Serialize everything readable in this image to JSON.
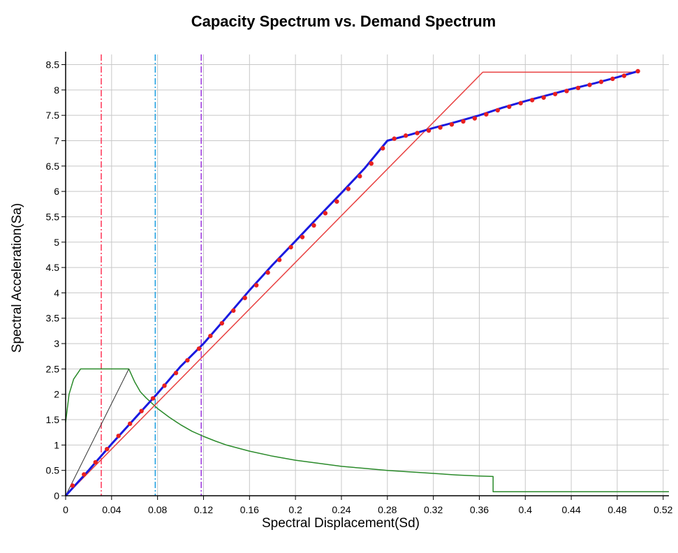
{
  "chart_data": {
    "type": "line",
    "title": "Capacity Spectrum vs. Demand Spectrum",
    "xlabel": "Spectral Displacement(Sd)",
    "ylabel": "Spectral Acceleration(Sa)",
    "xlim": [
      0,
      0.525
    ],
    "ylim": [
      0,
      8.7
    ],
    "grid": true,
    "x_ticks": [
      0,
      0.04,
      0.08,
      0.12,
      0.16,
      0.2,
      0.24,
      0.28,
      0.32,
      0.36,
      0.4,
      0.44,
      0.48,
      0.52
    ],
    "x_tick_labels": [
      "0",
      "0.04",
      "0.08",
      "0.12",
      "0.16",
      "0.2",
      "0.24",
      "0.28",
      "0.32",
      "0.36",
      "0.4",
      "0.44",
      "0.48",
      "0.52"
    ],
    "y_ticks": [
      0,
      0.5,
      1,
      1.5,
      2,
      2.5,
      3,
      3.5,
      4,
      4.5,
      5,
      5.5,
      6,
      6.5,
      7,
      7.5,
      8,
      8.5
    ],
    "y_tick_labels": [
      "0",
      "0.5",
      "1",
      "1.5",
      "2",
      "2.5",
      "3",
      "3.5",
      "4",
      "4.5",
      "5",
      "5.5",
      "6",
      "6.5",
      "7",
      "7.5",
      "8",
      "8.5"
    ],
    "series": [
      {
        "color": "#2a8a2a",
        "style": "solid",
        "points": [
          [
            0,
            1.45
          ],
          [
            0.003,
            2.0
          ],
          [
            0.007,
            2.3
          ],
          [
            0.013,
            2.5
          ],
          [
            0.055,
            2.5
          ],
          [
            0.06,
            2.25
          ],
          [
            0.065,
            2.05
          ],
          [
            0.07,
            1.93
          ],
          [
            0.08,
            1.72
          ],
          [
            0.09,
            1.55
          ],
          [
            0.1,
            1.4
          ],
          [
            0.11,
            1.27
          ],
          [
            0.12,
            1.17
          ],
          [
            0.13,
            1.08
          ],
          [
            0.14,
            1.0
          ],
          [
            0.16,
            0.88
          ],
          [
            0.18,
            0.78
          ],
          [
            0.2,
            0.7
          ],
          [
            0.22,
            0.64
          ],
          [
            0.24,
            0.58
          ],
          [
            0.26,
            0.54
          ],
          [
            0.28,
            0.5
          ],
          [
            0.3,
            0.47
          ],
          [
            0.32,
            0.44
          ],
          [
            0.34,
            0.41
          ],
          [
            0.36,
            0.39
          ],
          [
            0.372,
            0.38
          ],
          [
            0.372,
            0.08
          ],
          [
            0.525,
            0.08
          ]
        ]
      },
      {
        "color": "#333333",
        "style": "solid",
        "points": [
          [
            0,
            0
          ],
          [
            0.055,
            2.5
          ]
        ]
      },
      {
        "color": "#e84040",
        "style": "solid",
        "points": [
          [
            0,
            0
          ],
          [
            0.363,
            8.35
          ],
          [
            0.498,
            8.35
          ]
        ]
      },
      {
        "color": "#1a1ae0",
        "style": "solid",
        "points": [
          [
            0,
            0
          ],
          [
            0.02,
            0.5
          ],
          [
            0.04,
            1.02
          ],
          [
            0.06,
            1.52
          ],
          [
            0.08,
            2.02
          ],
          [
            0.1,
            2.55
          ],
          [
            0.12,
            3.0
          ],
          [
            0.14,
            3.52
          ],
          [
            0.16,
            4.05
          ],
          [
            0.18,
            4.55
          ],
          [
            0.2,
            5.02
          ],
          [
            0.22,
            5.5
          ],
          [
            0.24,
            5.97
          ],
          [
            0.26,
            6.45
          ],
          [
            0.28,
            7.0
          ],
          [
            0.3,
            7.12
          ],
          [
            0.32,
            7.25
          ],
          [
            0.34,
            7.37
          ],
          [
            0.36,
            7.5
          ],
          [
            0.38,
            7.65
          ],
          [
            0.4,
            7.78
          ],
          [
            0.42,
            7.9
          ],
          [
            0.44,
            8.02
          ],
          [
            0.46,
            8.13
          ],
          [
            0.48,
            8.25
          ],
          [
            0.498,
            8.37
          ]
        ]
      }
    ],
    "markers": {
      "color": "#e82020",
      "x": [
        0.006,
        0.016,
        0.026,
        0.036,
        0.046,
        0.056,
        0.066,
        0.076,
        0.086,
        0.096,
        0.106,
        0.116,
        0.126,
        0.136,
        0.146,
        0.156,
        0.166,
        0.176,
        0.186,
        0.196,
        0.206,
        0.216,
        0.226,
        0.236,
        0.246,
        0.256,
        0.266,
        0.276,
        0.286,
        0.296,
        0.306,
        0.316,
        0.326,
        0.336,
        0.346,
        0.356,
        0.366,
        0.376,
        0.386,
        0.396,
        0.406,
        0.416,
        0.426,
        0.436,
        0.446,
        0.456,
        0.466,
        0.476,
        0.486,
        0.498
      ],
      "y": [
        0.2,
        0.42,
        0.66,
        0.92,
        1.18,
        1.42,
        1.67,
        1.92,
        2.17,
        2.42,
        2.67,
        2.9,
        3.15,
        3.4,
        3.65,
        3.9,
        4.15,
        4.4,
        4.65,
        4.9,
        5.1,
        5.33,
        5.57,
        5.8,
        6.05,
        6.3,
        6.55,
        6.85,
        7.04,
        7.1,
        7.15,
        7.2,
        7.26,
        7.32,
        7.38,
        7.44,
        7.52,
        7.6,
        7.67,
        7.74,
        7.8,
        7.85,
        7.92,
        7.98,
        8.04,
        8.1,
        8.16,
        8.22,
        8.28,
        8.37
      ]
    },
    "vertical_lines": [
      {
        "x": 0.031,
        "color": "#ff4060",
        "style": "dash-dot"
      },
      {
        "x": 0.078,
        "color": "#20a0e0",
        "style": "dash-dot"
      },
      {
        "x": 0.118,
        "color": "#a040e0",
        "style": "dash-dot"
      }
    ]
  }
}
